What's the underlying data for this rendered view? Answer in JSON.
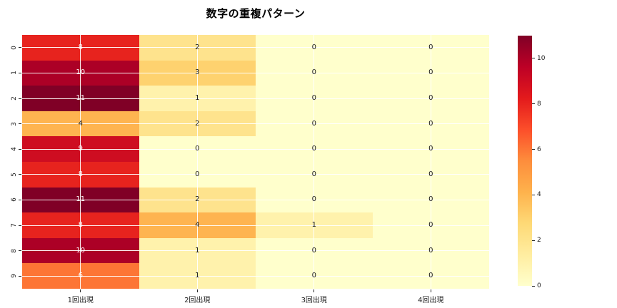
{
  "title": "数字の重複パターン",
  "colors": {
    "background": "#ffffff",
    "gridline": "#ffffff",
    "tick_color": "#262626",
    "label_color": "#1a1a1a",
    "annot_dark": "#1a1a1a",
    "annot_light": "#ffffff"
  },
  "chart_data": {
    "type": "heatmap",
    "title": "数字の重複パターン",
    "colormap": "YlOrRd",
    "vmin": 0,
    "vmax": 11,
    "grid": true,
    "row_labels": [
      "0",
      "1",
      "2",
      "3",
      "4",
      "5",
      "6",
      "7",
      "8",
      "9"
    ],
    "col_labels": [
      "1回出現",
      "2回出現",
      "3回出現",
      "4回出現"
    ],
    "values": [
      [
        8,
        2,
        0,
        0
      ],
      [
        10,
        3,
        0,
        0
      ],
      [
        11,
        1,
        0,
        0
      ],
      [
        4,
        2,
        0,
        0
      ],
      [
        9,
        0,
        0,
        0
      ],
      [
        8,
        0,
        0,
        0
      ],
      [
        11,
        2,
        0,
        0
      ],
      [
        8,
        4,
        1,
        0
      ],
      [
        10,
        1,
        0,
        0
      ],
      [
        6,
        1,
        0,
        0
      ]
    ],
    "value_colors": {
      "0": "#ffffcc",
      "1": "#fff2ac",
      "2": "#fee38d",
      "3": "#fed26f",
      "4": "#feb450",
      "6": "#fd7535",
      "8": "#e7231e",
      "9": "#ce0d21",
      "10": "#ac0026",
      "11": "#800026"
    },
    "white_text_min_value": 6,
    "colorbar": {
      "position": "right",
      "ticks": [
        0,
        2,
        4,
        6,
        8,
        10
      ],
      "gradient_top_to_bottom": [
        {
          "stop": 0.0,
          "color": "#800026"
        },
        {
          "stop": 0.125,
          "color": "#bd0026"
        },
        {
          "stop": 0.25,
          "color": "#e31a1c"
        },
        {
          "stop": 0.375,
          "color": "#fc4e2a"
        },
        {
          "stop": 0.5,
          "color": "#fd8d3c"
        },
        {
          "stop": 0.625,
          "color": "#feb24c"
        },
        {
          "stop": 0.75,
          "color": "#fed976"
        },
        {
          "stop": 0.875,
          "color": "#ffeda0"
        },
        {
          "stop": 1.0,
          "color": "#ffffcc"
        }
      ]
    }
  }
}
